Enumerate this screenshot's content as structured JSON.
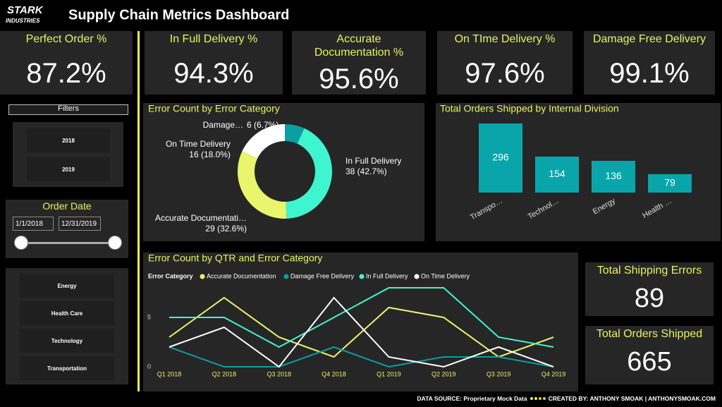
{
  "header": {
    "logo": [
      "STARK",
      "INDUSTRIES"
    ],
    "title": "Supply Chain Metrics Dashboard"
  },
  "kpis": [
    {
      "label": "Perfect Order %",
      "value": "87.2%"
    },
    {
      "label": "In Full Delivery %",
      "value": "94.3%"
    },
    {
      "label": "Accurate Documentation %",
      "value": "95.6%"
    },
    {
      "label": "On TIme Delivery %",
      "value": "97.6%"
    },
    {
      "label": "Damage Free Delivery",
      "value": "99.1%"
    }
  ],
  "filters": {
    "title": "Filters",
    "years": [
      "2018",
      "2019"
    ],
    "order_date_title": "Order Date",
    "date_from": "1/1/2018",
    "date_to": "12/31/2019",
    "divisions": [
      "Energy",
      "Health Care",
      "Technology",
      "Transportation"
    ]
  },
  "totals": [
    {
      "label": "Total Shipping Errors",
      "value": "89"
    },
    {
      "label": "Total Orders Shipped",
      "value": "665"
    }
  ],
  "footer": {
    "source": "DATA SOURCE: Proprietary Mock Data",
    "credit": "CREATED BY: ANTHONY SMOAK | ANTHONYSMOAK.COM"
  },
  "chart_data": [
    {
      "type": "pie",
      "title": "Error Count by Error Category",
      "hole": true,
      "categories": [
        "Damage…",
        "In Full Delivery",
        "Accurate Documentati…",
        "On Time Delivery"
      ],
      "values": [
        6,
        38,
        29,
        16
      ],
      "value_labels": [
        "6 (6.7%)",
        "38 (42.7%)",
        "29 (32.6%)",
        "16 (18.0%)"
      ],
      "colors": [
        "#0b9ea3",
        "#3ff5cf",
        "#e9f56c",
        "#ffffff"
      ]
    },
    {
      "type": "bar",
      "title": "Total Orders Shipped by Internal Division",
      "categories": [
        "Transpo…",
        "Technol…",
        "Energy",
        "Health …"
      ],
      "values": [
        296,
        154,
        136,
        79
      ],
      "color": "#0aa5aa"
    },
    {
      "type": "line",
      "title": "Error Count by QTR and Error Category",
      "legend_title": "Error Category",
      "categories": [
        "Q1 2018",
        "Q2 2018",
        "Q3 2018",
        "Q4 2018",
        "Q1 2019",
        "Q2 2019",
        "Q3 2019",
        "Q4 2019"
      ],
      "ylim": [
        0,
        9
      ],
      "yticks": [
        0,
        5
      ],
      "series": [
        {
          "name": "Accurate Documentation",
          "color": "#e9f56c",
          "values": [
            3,
            7,
            3,
            1,
            6,
            5,
            1,
            3
          ]
        },
        {
          "name": "Damage Free Delivery",
          "color": "#0b9ea3",
          "values": [
            2,
            0,
            0,
            2,
            0,
            1,
            1,
            0
          ]
        },
        {
          "name": "In Full Delivery",
          "color": "#3ff5cf",
          "values": [
            5,
            5,
            2,
            5,
            8,
            8,
            3,
            2
          ]
        },
        {
          "name": "On Time Delivery",
          "color": "#ffffff",
          "values": [
            2,
            4,
            0,
            7,
            1,
            0,
            2,
            0
          ]
        }
      ]
    }
  ]
}
